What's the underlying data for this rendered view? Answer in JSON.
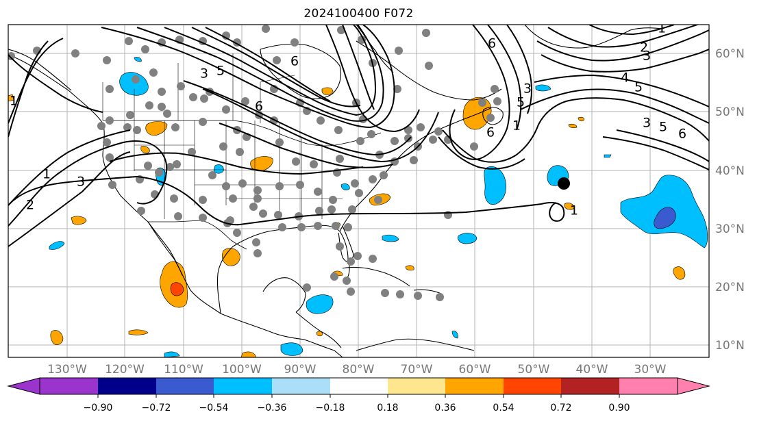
{
  "title": "2024100400 F072",
  "map": {
    "lon_labels": [
      "130°W",
      "120°W",
      "110°W",
      "100°W",
      "90°W",
      "80°W",
      "70°W",
      "60°W",
      "50°W",
      "40°W",
      "30°W"
    ],
    "lat_labels": [
      "60°N",
      "50°N",
      "40°N",
      "30°N",
      "20°N",
      "10°N"
    ],
    "contour_labels": [
      "1",
      "2",
      "3",
      "1",
      "3",
      "5",
      "6",
      "6",
      "5",
      "3",
      "6",
      "6",
      "1",
      "1",
      "2",
      "3",
      "4",
      "5",
      "3",
      "5",
      "6",
      "1"
    ]
  },
  "colorbar": {
    "ticks": [
      "−0.90",
      "−0.72",
      "−0.54",
      "−0.36",
      "−0.18",
      "0.18",
      "0.36",
      "0.54",
      "0.72",
      "0.90"
    ],
    "colors": [
      "#9a34cc",
      "#00008b",
      "#3a5bd0",
      "#00bfff",
      "#abdff9",
      "#ffffff",
      "#fde68d",
      "#ffa500",
      "#ff4500",
      "#b22222",
      "#ff7fad"
    ]
  },
  "colors": {
    "gridline": "#b3b3b3",
    "station_dot": "#808080",
    "tick_label": "#777777"
  }
}
